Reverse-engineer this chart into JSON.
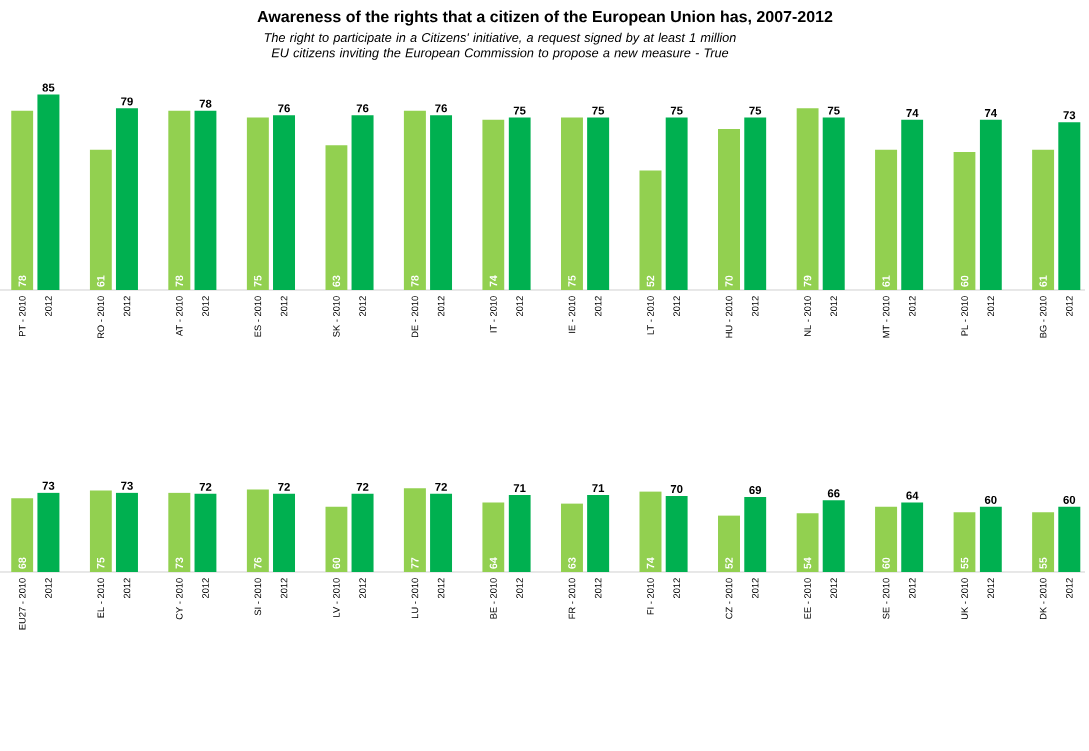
{
  "chart_data": [
    {
      "type": "bar",
      "title": "Awareness of the rights that a citizen of the European Union has, 2007-2012",
      "subtitle": "The right to participate in a Citizens' initiative, a request signed by at least 1 million EU citizens inviting the European Commission to propose a new measure - True",
      "categories": [
        "PT - 2010",
        "2012",
        "RO - 2010",
        "2012",
        "AT - 2010",
        "2012",
        "ES - 2010",
        "2012",
        "SK - 2010",
        "2012",
        "DE - 2010",
        "2012",
        "IT - 2010",
        "2012",
        "IE - 2010",
        "2012",
        "LT - 2010",
        "2012",
        "HU - 2010",
        "2012",
        "NL - 2010",
        "2012",
        "MT - 2010",
        "2012",
        "PL - 2010",
        "2012",
        "BG - 2010",
        "2012"
      ],
      "values": [
        78,
        85,
        61,
        79,
        78,
        78,
        75,
        76,
        63,
        76,
        78,
        76,
        74,
        75,
        75,
        75,
        52,
        75,
        70,
        75,
        79,
        75,
        61,
        74,
        60,
        74,
        61,
        73
      ],
      "colors": [
        "#92d050",
        "#00b050",
        "#92d050",
        "#00b050",
        "#92d050",
        "#00b050",
        "#92d050",
        "#00b050",
        "#92d050",
        "#00b050",
        "#92d050",
        "#00b050",
        "#92d050",
        "#00b050",
        "#92d050",
        "#00b050",
        "#92d050",
        "#00b050",
        "#92d050",
        "#00b050",
        "#92d050",
        "#00b050",
        "#92d050",
        "#00b050",
        "#92d050",
        "#00b050",
        "#92d050",
        "#00b050"
      ],
      "data_labels": true
    },
    {
      "type": "bar",
      "categories": [
        "EU27 - 2010",
        "2012",
        "EL - 2010",
        "2012",
        "CY - 2010",
        "2012",
        "SI - 2010",
        "2012",
        "LV - 2010",
        "2012",
        "LU - 2010",
        "2012",
        "BE - 2010",
        "2012",
        "FR - 2010",
        "2012",
        "FI - 2010",
        "2012",
        "CZ - 2010",
        "2012",
        "EE - 2010",
        "2012",
        "SE - 2010",
        "2012",
        "UK - 2010",
        "2012",
        "DK - 2010",
        "2012"
      ],
      "values": [
        68,
        73,
        75,
        73,
        73,
        72,
        76,
        72,
        60,
        72,
        77,
        72,
        64,
        71,
        63,
        71,
        74,
        70,
        52,
        69,
        54,
        66,
        60,
        64,
        55,
        60,
        55,
        60
      ],
      "colors": [
        "#92d050",
        "#00b050",
        "#92d050",
        "#00b050",
        "#92d050",
        "#00b050",
        "#92d050",
        "#00b050",
        "#92d050",
        "#00b050",
        "#92d050",
        "#00b050",
        "#92d050",
        "#00b050",
        "#92d050",
        "#00b050",
        "#92d050",
        "#00b050",
        "#92d050",
        "#00b050",
        "#92d050",
        "#00b050",
        "#92d050",
        "#00b050",
        "#92d050",
        "#00b050",
        "#92d050",
        "#00b050"
      ],
      "data_labels": true
    }
  ]
}
